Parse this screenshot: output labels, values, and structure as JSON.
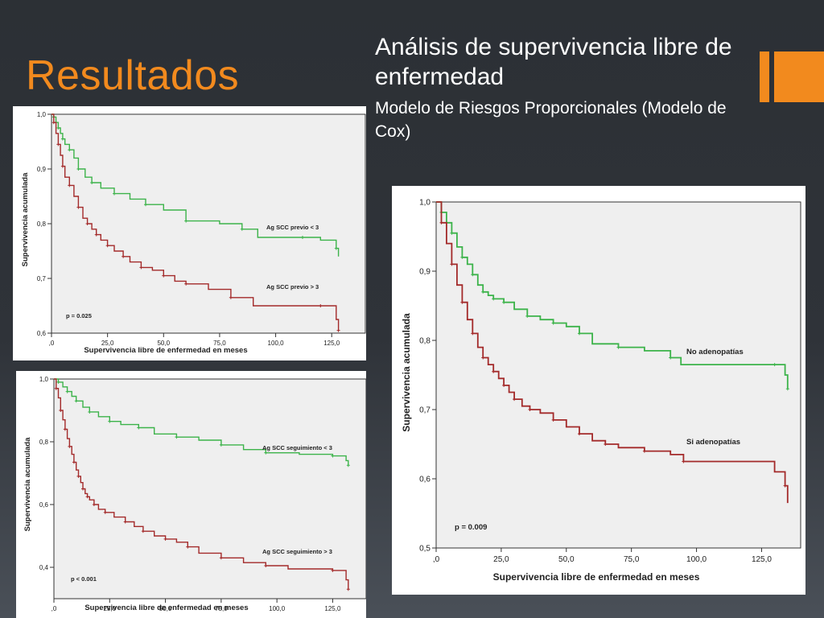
{
  "slide": {
    "title": "Resultados",
    "heading": "Análisis de supervivencia libre de enfermedad",
    "subheading": "Modelo de Riesgos Proporcionales (Modelo de Cox)",
    "colors": {
      "title": "#f28a1e",
      "accent": "#f28a1e",
      "background": "#2c3035"
    }
  },
  "chart_data": [
    {
      "type": "line",
      "ylabel": "Supervivencia acumulada",
      "xlabel": "Supervivencia libre de enfermedad en meses",
      "xlim": [
        0,
        140
      ],
      "ylim": [
        0.6,
        1.0
      ],
      "xticks": [
        0,
        25,
        50,
        75,
        100,
        125
      ],
      "xtick_labels": [
        ",0",
        "25,0",
        "50,0",
        "75,0",
        "100,0",
        "125,0"
      ],
      "yticks": [
        0.6,
        0.7,
        0.8,
        0.9,
        1.0
      ],
      "ytick_labels": [
        "0,6",
        "0,7",
        "0,8",
        "0,9",
        "1,0"
      ],
      "annotation": "p = 0.025",
      "series": [
        {
          "name": "Ag SCC previo < 3",
          "color": "#3cb34a",
          "x": [
            0,
            1,
            2,
            3,
            4,
            5,
            6,
            8,
            10,
            12,
            15,
            18,
            22,
            28,
            35,
            42,
            50,
            60,
            75,
            85,
            92,
            112,
            120,
            127,
            128
          ],
          "y": [
            1.0,
            0.995,
            0.985,
            0.975,
            0.965,
            0.955,
            0.945,
            0.935,
            0.92,
            0.9,
            0.885,
            0.875,
            0.865,
            0.855,
            0.845,
            0.835,
            0.825,
            0.805,
            0.8,
            0.79,
            0.775,
            0.775,
            0.77,
            0.755,
            0.74
          ]
        },
        {
          "name": "Ag SCC previo > 3",
          "color": "#a32a2a",
          "x": [
            0,
            1,
            2,
            3,
            4,
            5,
            6,
            8,
            10,
            12,
            14,
            16,
            18,
            20,
            22,
            25,
            28,
            32,
            35,
            40,
            45,
            50,
            55,
            60,
            70,
            80,
            90,
            120,
            127,
            128
          ],
          "y": [
            1.0,
            0.985,
            0.965,
            0.945,
            0.925,
            0.905,
            0.885,
            0.87,
            0.85,
            0.83,
            0.81,
            0.8,
            0.79,
            0.78,
            0.77,
            0.76,
            0.75,
            0.74,
            0.73,
            0.72,
            0.715,
            0.705,
            0.695,
            0.69,
            0.68,
            0.665,
            0.65,
            0.65,
            0.625,
            0.605
          ]
        }
      ]
    },
    {
      "type": "line",
      "ylabel": "Supervivencia acumulada",
      "xlabel": "Supervivencia libre de enfermedad en meses",
      "xlim": [
        0,
        140
      ],
      "ylim": [
        0.3,
        1.0
      ],
      "xticks": [
        0,
        25,
        50,
        75,
        100,
        125
      ],
      "xtick_labels": [
        ",0",
        "25,0",
        "50,0",
        "75,0",
        "100,0",
        "125,0"
      ],
      "yticks": [
        0.4,
        0.6,
        0.8,
        1.0
      ],
      "ytick_labels": [
        "0,4",
        "0,6",
        "0,8",
        "1,0"
      ],
      "annotation": "p < 0.001",
      "series": [
        {
          "name": "Ag SCC seguimiento < 3",
          "color": "#3cb34a",
          "x": [
            0,
            2,
            4,
            6,
            8,
            10,
            13,
            16,
            20,
            25,
            30,
            38,
            45,
            55,
            65,
            75,
            85,
            95,
            110,
            125,
            131,
            132
          ],
          "y": [
            1.0,
            0.99,
            0.975,
            0.96,
            0.945,
            0.93,
            0.91,
            0.895,
            0.88,
            0.865,
            0.855,
            0.845,
            0.825,
            0.815,
            0.805,
            0.79,
            0.775,
            0.765,
            0.76,
            0.755,
            0.74,
            0.725
          ]
        },
        {
          "name": "Ag SCC seguimiento > 3",
          "color": "#a32a2a",
          "x": [
            0,
            1,
            2,
            3,
            4,
            5,
            6,
            7,
            8,
            9,
            10,
            11,
            12,
            13,
            14,
            15,
            16,
            18,
            20,
            23,
            27,
            32,
            36,
            40,
            45,
            50,
            55,
            60,
            65,
            75,
            85,
            95,
            105,
            125,
            131,
            132
          ],
          "y": [
            1.0,
            0.97,
            0.94,
            0.9,
            0.87,
            0.84,
            0.81,
            0.785,
            0.76,
            0.735,
            0.71,
            0.69,
            0.67,
            0.65,
            0.635,
            0.625,
            0.615,
            0.6,
            0.585,
            0.575,
            0.56,
            0.545,
            0.53,
            0.515,
            0.5,
            0.49,
            0.48,
            0.465,
            0.445,
            0.43,
            0.415,
            0.405,
            0.395,
            0.39,
            0.36,
            0.33
          ]
        }
      ]
    },
    {
      "type": "line",
      "ylabel": "Supervivencia acumulada",
      "xlabel": "Supervivencia libre de enfermedad en meses",
      "xlim": [
        0,
        140
      ],
      "ylim": [
        0.5,
        1.0
      ],
      "xticks": [
        0,
        25,
        50,
        75,
        100,
        125
      ],
      "xtick_labels": [
        ",0",
        "25,0",
        "50,0",
        "75,0",
        "100,0",
        "125,0"
      ],
      "yticks": [
        0.5,
        0.6,
        0.7,
        0.8,
        0.9,
        1.0
      ],
      "ytick_labels": [
        "0,5",
        "0,6",
        "0,7",
        "0,8",
        "0,9",
        "1,0"
      ],
      "annotation": "p = 0.009",
      "series": [
        {
          "name": "No adenopatías",
          "color": "#3cb34a",
          "x": [
            0,
            2,
            4,
            6,
            8,
            10,
            12,
            14,
            16,
            18,
            20,
            22,
            24,
            26,
            30,
            35,
            40,
            45,
            50,
            55,
            60,
            70,
            80,
            90,
            94,
            130,
            134,
            135
          ],
          "y": [
            1.0,
            0.985,
            0.97,
            0.955,
            0.935,
            0.92,
            0.91,
            0.895,
            0.88,
            0.87,
            0.865,
            0.86,
            0.86,
            0.855,
            0.845,
            0.835,
            0.83,
            0.825,
            0.82,
            0.81,
            0.795,
            0.79,
            0.785,
            0.775,
            0.765,
            0.765,
            0.75,
            0.73
          ]
        },
        {
          "name": "Si adenopatías",
          "color": "#a32a2a",
          "x": [
            0,
            2,
            4,
            6,
            8,
            10,
            12,
            14,
            16,
            18,
            20,
            22,
            24,
            26,
            28,
            30,
            33,
            36,
            40,
            45,
            50,
            55,
            60,
            65,
            70,
            80,
            90,
            95,
            130,
            134,
            135
          ],
          "y": [
            1.0,
            0.97,
            0.94,
            0.91,
            0.88,
            0.855,
            0.83,
            0.81,
            0.79,
            0.775,
            0.765,
            0.755,
            0.745,
            0.735,
            0.725,
            0.715,
            0.705,
            0.7,
            0.695,
            0.685,
            0.675,
            0.665,
            0.655,
            0.65,
            0.645,
            0.64,
            0.635,
            0.625,
            0.61,
            0.59,
            0.565
          ]
        }
      ]
    }
  ]
}
